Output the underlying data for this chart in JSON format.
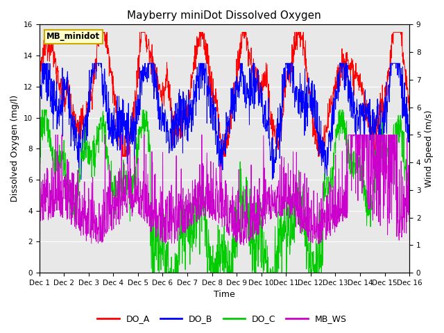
{
  "title": "Mayberry miniDot Dissolved Oxygen",
  "ylabel_left": "Dissolved Oxygen (mg/l)",
  "ylabel_right": "Wind Speed (m/s)",
  "xlabel": "Time",
  "ylim_left": [
    0,
    16
  ],
  "ylim_right": [
    0.0,
    9.0
  ],
  "yticks_left": [
    0,
    2,
    4,
    6,
    8,
    10,
    12,
    14,
    16
  ],
  "yticks_right": [
    0.0,
    1.0,
    2.0,
    3.0,
    4.0,
    5.0,
    6.0,
    7.0,
    8.0,
    9.0
  ],
  "background_color": "#e8e8e8",
  "fig_color": "#ffffff",
  "label_box_text": "MB_minidot",
  "label_box_facecolor": "#ffffcc",
  "label_box_edgecolor": "#ccaa00",
  "line_colors": {
    "DO_A": "#ff0000",
    "DO_B": "#0000ff",
    "DO_C": "#00cc00",
    "MB_WS": "#cc00cc"
  },
  "days": 15,
  "n_points": 1440,
  "xtick_labels": [
    "Dec 1",
    "Dec 2",
    "Dec 3",
    "Dec 4",
    "Dec 5",
    "Dec 6",
    "Dec 7",
    "Dec 8",
    "Dec 9",
    "Dec 10",
    "Dec 11",
    "Dec 12",
    "Dec 13",
    "Dec 14",
    "Dec 15",
    "Dec 16"
  ],
  "title_fontsize": 11,
  "axis_label_fontsize": 9,
  "tick_fontsize": 7.5,
  "legend_fontsize": 9,
  "linewidth": 0.7
}
